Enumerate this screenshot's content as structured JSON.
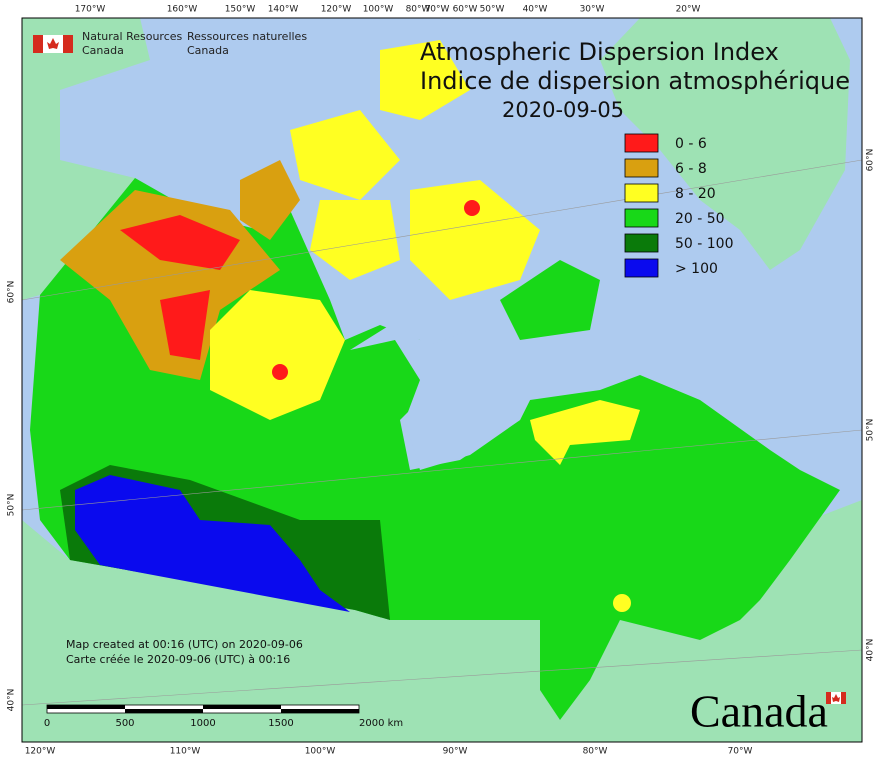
{
  "header": {
    "agency_en": [
      "Natural Resources",
      "Canada"
    ],
    "agency_fr": [
      "Ressources naturelles",
      "Canada"
    ]
  },
  "title": {
    "en": "Atmospheric Dispersion Index",
    "fr": "Indice de dispersion atmosphérique",
    "date": "2020-09-05"
  },
  "legend": [
    {
      "label": "0 - 6",
      "color": "#ff1a1a"
    },
    {
      "label": "6 - 8",
      "color": "#d9a010"
    },
    {
      "label": "8 - 20",
      "color": "#ffff22"
    },
    {
      "label": "20 - 50",
      "color": "#18d818"
    },
    {
      "label": "50 - 100",
      "color": "#0a7a0a"
    },
    {
      "label": "> 100",
      "color": "#0a0aee"
    }
  ],
  "top_longitudes": [
    "170°W",
    "160°W",
    "150°W",
    "140°W",
    "120°W",
    "100°W",
    "80°W",
    "70°W",
    "60°W",
    "50°W",
    "40°W",
    "30°W",
    "20°W"
  ],
  "bottom_longitudes": [
    "120°W",
    "110°W",
    "100°W",
    "90°W",
    "80°W",
    "70°W"
  ],
  "left_latitudes": [
    "60°N",
    "50°N",
    "40°N"
  ],
  "right_latitudes": [
    "60°N",
    "50°N",
    "40°N"
  ],
  "notes": [
    "Map created at 00:16 (UTC) on 2020-09-06",
    "Carte créée le 2020-09-06 (UTC) à 00:16"
  ],
  "scale_bar": {
    "labels": [
      "0",
      "500",
      "1000",
      "1500",
      "2000 km"
    ]
  },
  "wordmark": "Canada"
}
